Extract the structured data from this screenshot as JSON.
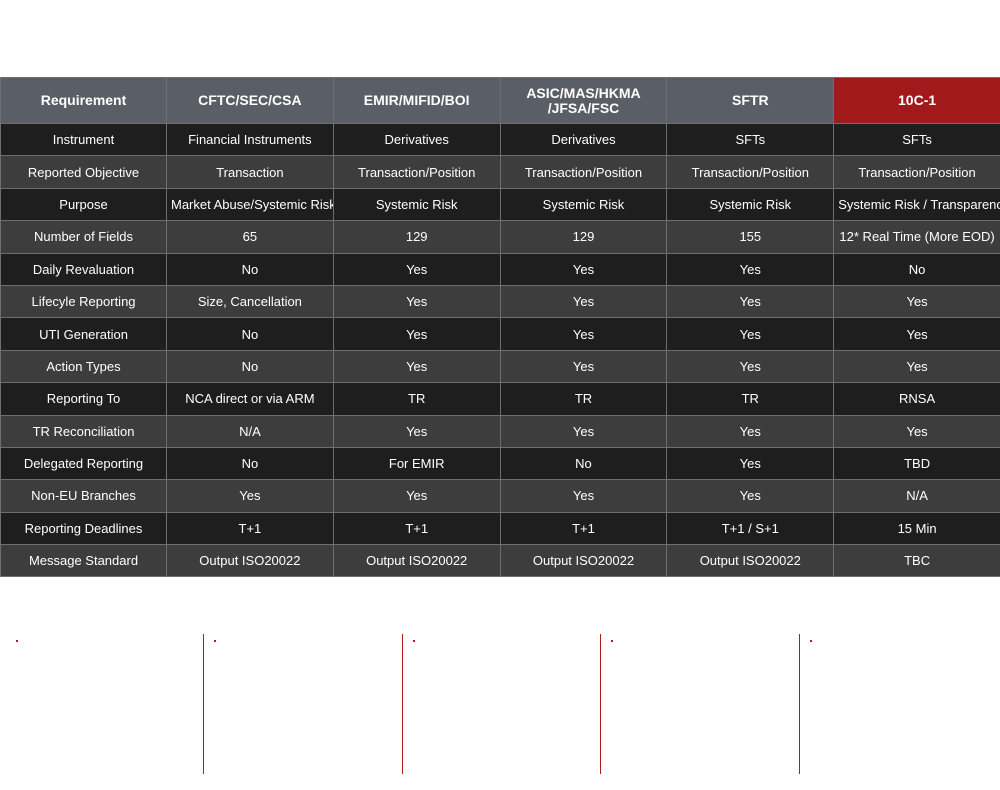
{
  "table": {
    "headers": [
      "Requirement",
      "CFTC/SEC/CSA",
      "EMIR/MIFID/BOI",
      "ASIC/MAS/HKMA\n/JFSA/FSC",
      "SFTR",
      "10C-1"
    ],
    "rows": [
      [
        "Instrument",
        "Financial Instruments",
        "Derivatives",
        "Derivatives",
        "SFTs",
        "SFTs"
      ],
      [
        "Reported Objective",
        "Transaction",
        "Transaction/Position",
        "Transaction/Position",
        "Transaction/Position",
        "Transaction/Position"
      ],
      [
        "Purpose",
        "Market Abuse/Systemic Risk",
        "Systemic Risk",
        "Systemic Risk",
        "Systemic Risk",
        "Systemic Risk / Transparency"
      ],
      [
        "Number of Fields",
        "65",
        "129",
        "129",
        "155",
        "12* Real Time (More EOD)"
      ],
      [
        "Daily Revaluation",
        "No",
        "Yes",
        "Yes",
        "Yes",
        "No"
      ],
      [
        "Lifecyle Reporting",
        "Size, Cancellation",
        "Yes",
        "Yes",
        "Yes",
        "Yes"
      ],
      [
        "UTI Generation",
        "No",
        "Yes",
        "Yes",
        "Yes",
        "Yes"
      ],
      [
        "Action Types",
        "No",
        "Yes",
        "Yes",
        "Yes",
        "Yes"
      ],
      [
        "Reporting To",
        "NCA direct or via ARM",
        "TR",
        "TR",
        "TR",
        "RNSA"
      ],
      [
        "TR Reconciliation",
        "N/A",
        "Yes",
        "Yes",
        "Yes",
        "Yes"
      ],
      [
        "Delegated Reporting",
        "No",
        "For EMIR",
        "No",
        "Yes",
        "TBD"
      ],
      [
        "Non-EU Branches",
        "Yes",
        "Yes",
        "Yes",
        "Yes",
        "N/A"
      ],
      [
        "Reporting Deadlines",
        "T+1",
        "T+1",
        "T+1",
        "T+1 / S+1",
        "15 Min"
      ],
      [
        "Message Standard",
        "Output ISO20022",
        "Output ISO20022",
        "Output ISO20022",
        "Output ISO20022",
        "TBC"
      ]
    ]
  },
  "colors": {
    "header_bg": "#5a5e66",
    "highlight_header_bg": "#a2191b",
    "row_dark": "#1f1e1f",
    "row_light": "#3d3d3d",
    "accent_line": "#b01a1e"
  }
}
